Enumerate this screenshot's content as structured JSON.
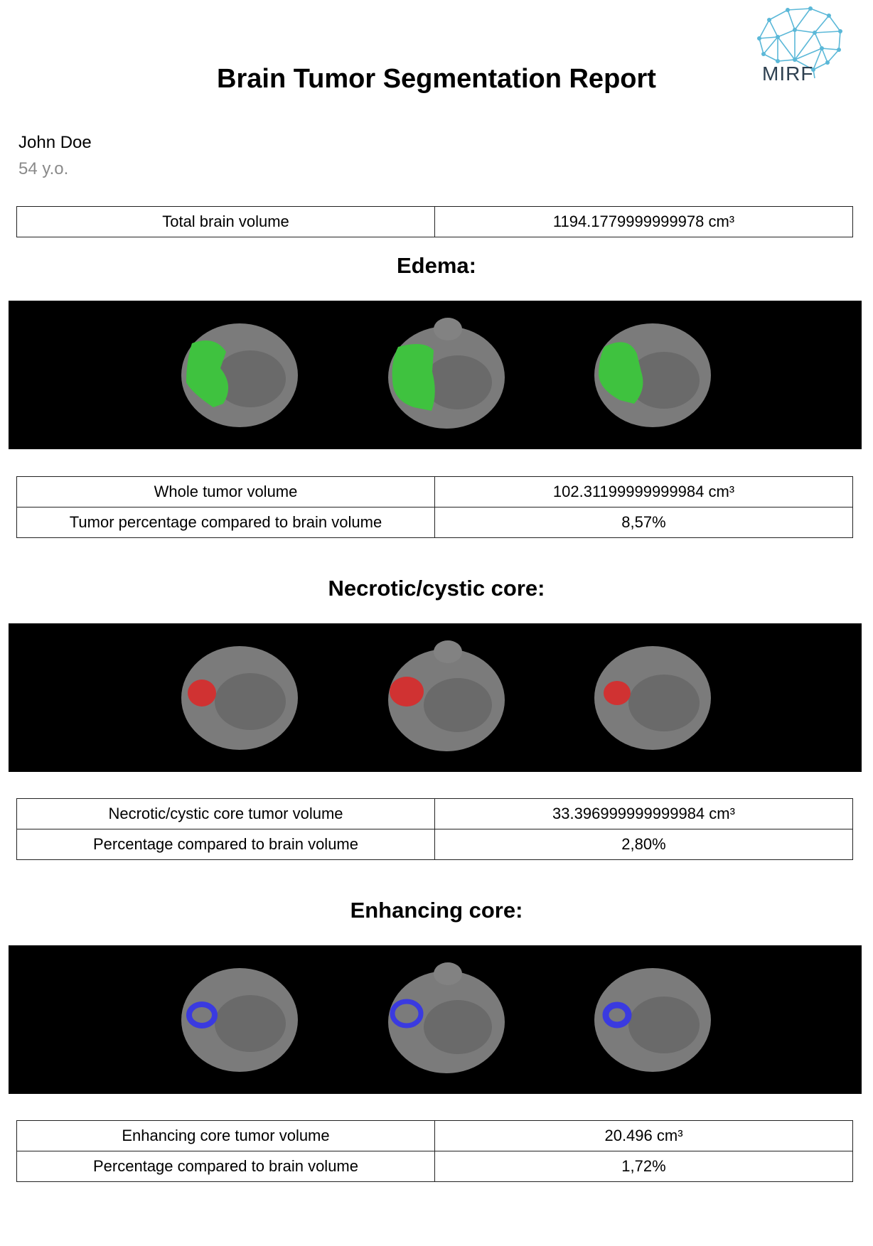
{
  "report": {
    "title": "Brain Tumor Segmentation Report",
    "logo_text": "MIRF"
  },
  "patient": {
    "name": "John Doe",
    "age": "54 y.o."
  },
  "total_brain": {
    "label": "Total brain volume",
    "value": "1194.1779999999978 cm³"
  },
  "edema": {
    "title": "Edema:",
    "overlay_color": "#3fc23f",
    "rows": [
      {
        "label": "Whole tumor volume",
        "value": "102.31199999999984 cm³"
      },
      {
        "label": "Tumor percentage compared to brain volume",
        "value": "8,57%"
      }
    ]
  },
  "necrotic": {
    "title": "Necrotic/cystic core:",
    "overlay_color": "#d03232",
    "rows": [
      {
        "label": "Necrotic/cystic core tumor volume",
        "value": "33.396999999999984 cm³"
      },
      {
        "label": "Percentage compared to brain volume",
        "value": "2,80%"
      }
    ]
  },
  "enhancing": {
    "title": "Enhancing core:",
    "overlay_color": "#3a3ae0",
    "rows": [
      {
        "label": "Enhancing core tumor volume",
        "value": "20.496 cm³"
      },
      {
        "label": "Percentage compared to brain volume",
        "value": "1,72%"
      }
    ]
  }
}
